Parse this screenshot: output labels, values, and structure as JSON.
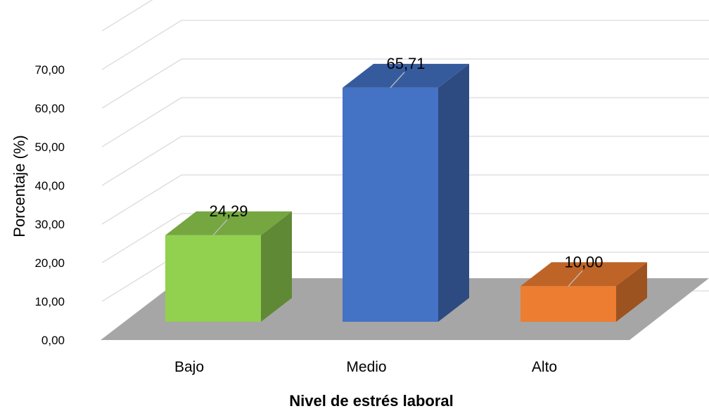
{
  "chart_data": {
    "type": "bar",
    "style": "3d-column",
    "categories": [
      "Bajo",
      "Medio",
      "Alto"
    ],
    "series": [
      {
        "values": [
          24.29,
          65.71,
          10.0
        ]
      }
    ],
    "value_labels": [
      "24,29",
      "65,71",
      "10,00"
    ],
    "xlabel": "Nivel de estrés laboral",
    "ylabel": "Porcentaje (%)",
    "ylim": [
      0,
      70
    ],
    "yticks": [
      "0,00",
      "10,00",
      "20,00",
      "30,00",
      "40,00",
      "50,00",
      "60,00",
      "70,00"
    ],
    "grid": true,
    "colors": {
      "bars": [
        "#92D050",
        "#4472C4",
        "#ED7D31"
      ],
      "floor": "#A6A6A6",
      "grid": "#D9D9D9"
    }
  }
}
